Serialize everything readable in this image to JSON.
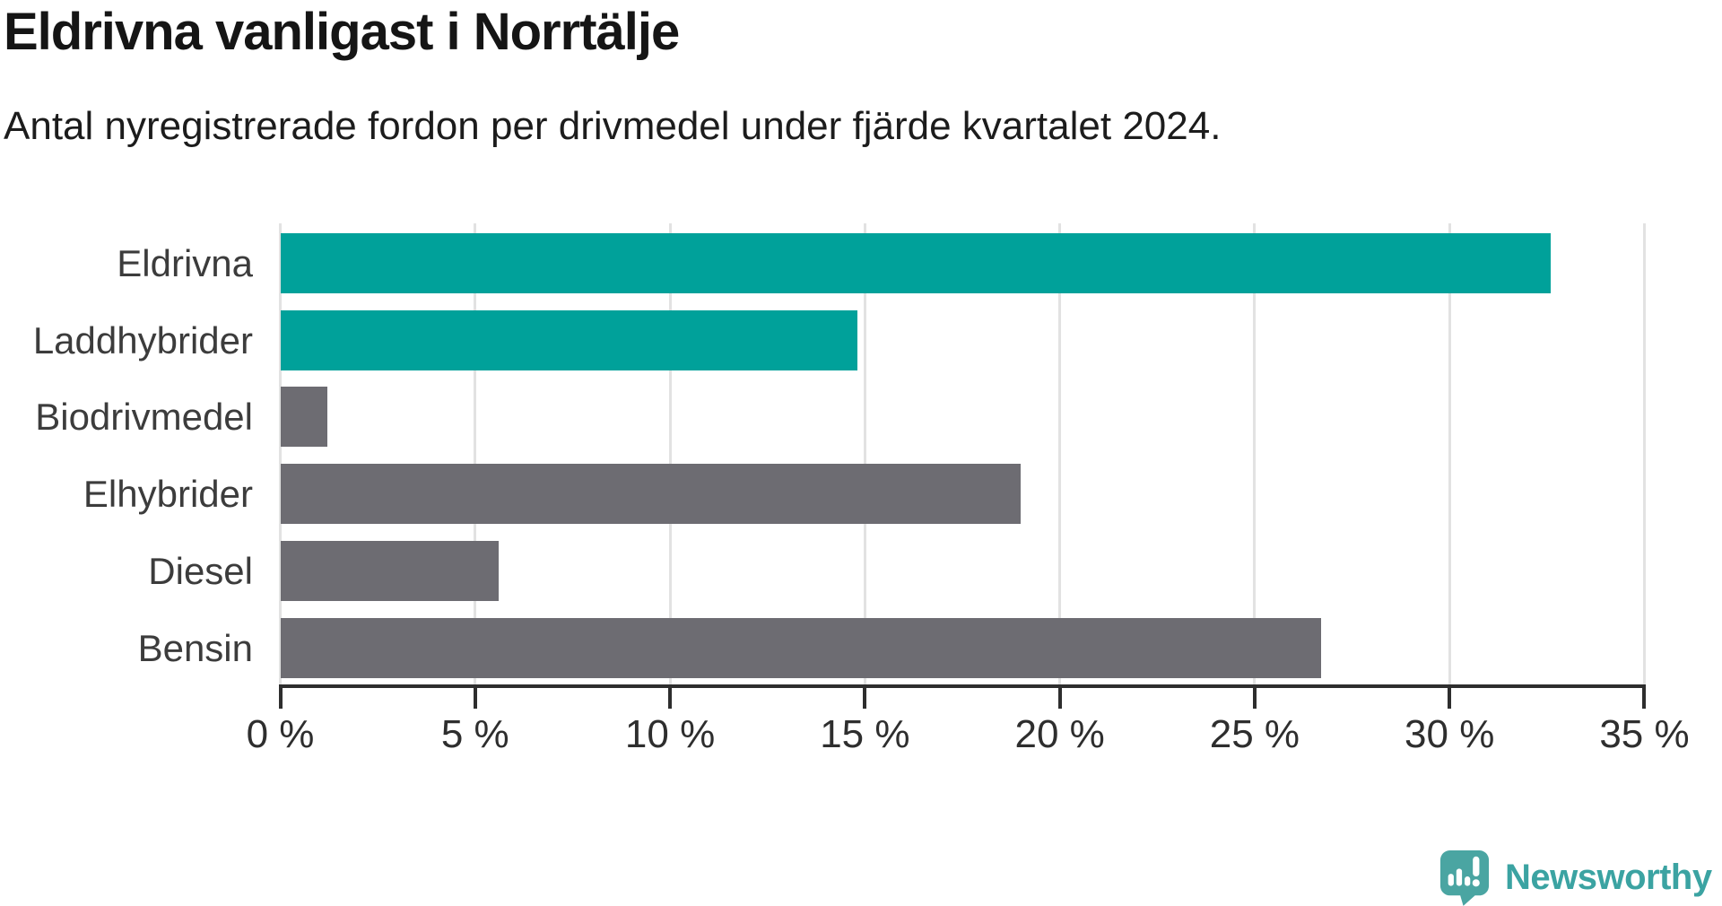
{
  "header": {
    "title": "Eldrivna vanligast i Norrtälje",
    "subtitle": "Antal nyregistrerade fordon per drivmedel under fjärde kvartalet 2024."
  },
  "chart_data": {
    "type": "bar",
    "orientation": "horizontal",
    "title": "Eldrivna vanligast i Norrtälje",
    "subtitle": "Antal nyregistrerade fordon per drivmedel under fjärde kvartalet 2024.",
    "categories": [
      "Eldrivna",
      "Laddhybrider",
      "Biodrivmedel",
      "Elhybrider",
      "Diesel",
      "Bensin"
    ],
    "values": [
      32.6,
      14.8,
      1.2,
      19.0,
      5.6,
      26.7
    ],
    "unit": "%",
    "bar_colors": [
      "teal",
      "teal",
      "gray",
      "gray",
      "gray",
      "gray"
    ],
    "colors": {
      "teal": "#00a19a",
      "gray": "#6d6c72",
      "grid": "#e2e2e2",
      "axis": "#2e2e2e"
    },
    "xlabel": "",
    "ylabel": "",
    "xlim": [
      0,
      35
    ],
    "x_ticks": [
      0,
      5,
      10,
      15,
      20,
      25,
      30,
      35
    ],
    "x_tick_labels": [
      "0 %",
      "5 %",
      "10 %",
      "15 %",
      "20 %",
      "25 %",
      "30 %",
      "35 %"
    ],
    "grid": "vertical-on",
    "legend": "none"
  },
  "footer": {
    "brand": "Newsworthy",
    "brand_color": "#3ba3a2",
    "icon_color": "#4aa5a2"
  }
}
